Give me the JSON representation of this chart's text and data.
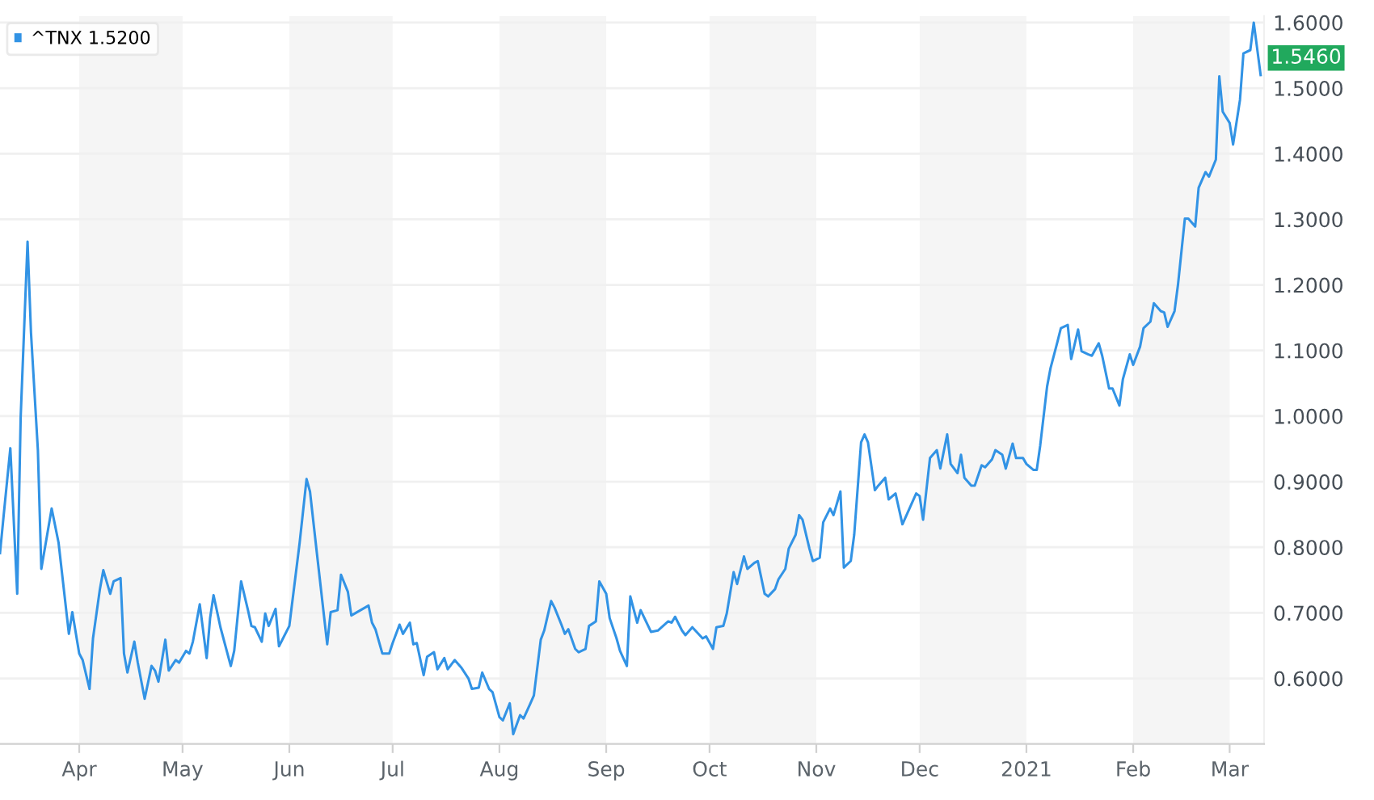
{
  "chart_data": {
    "type": "line",
    "x": [
      "2020-03-09",
      "2020-03-10",
      "2020-03-12",
      "2020-03-14",
      "2020-03-15",
      "2020-03-17",
      "2020-03-18",
      "2020-03-20",
      "2020-03-21",
      "2020-03-24",
      "2020-03-26",
      "2020-03-29",
      "2020-03-30",
      "2020-04-01",
      "2020-04-02",
      "2020-04-04",
      "2020-04-05",
      "2020-04-07",
      "2020-04-08",
      "2020-04-10",
      "2020-04-11",
      "2020-04-13",
      "2020-04-14",
      "2020-04-15",
      "2020-04-17",
      "2020-04-18",
      "2020-04-20",
      "2020-04-22",
      "2020-04-23",
      "2020-04-24",
      "2020-04-26",
      "2020-04-27",
      "2020-04-29",
      "2020-04-30",
      "2020-05-02",
      "2020-05-03",
      "2020-05-04",
      "2020-05-06",
      "2020-05-08",
      "2020-05-09",
      "2020-05-10",
      "2020-05-12",
      "2020-05-15",
      "2020-05-16",
      "2020-05-18",
      "2020-05-20",
      "2020-05-21",
      "2020-05-22",
      "2020-05-24",
      "2020-05-25",
      "2020-05-26",
      "2020-05-28",
      "2020-05-29",
      "2020-06-01",
      "2020-06-04",
      "2020-06-06",
      "2020-06-07",
      "2020-06-09",
      "2020-06-12",
      "2020-06-13",
      "2020-06-15",
      "2020-06-16",
      "2020-06-18",
      "2020-06-19",
      "2020-06-24",
      "2020-06-25",
      "2020-06-26",
      "2020-06-28",
      "2020-06-30",
      "2020-07-01",
      "2020-07-03",
      "2020-07-04",
      "2020-07-06",
      "2020-07-07",
      "2020-07-08",
      "2020-07-10",
      "2020-07-11",
      "2020-07-13",
      "2020-07-14",
      "2020-07-16",
      "2020-07-17",
      "2020-07-19",
      "2020-07-21",
      "2020-07-23",
      "2020-07-24",
      "2020-07-26",
      "2020-07-27",
      "2020-07-29",
      "2020-07-30",
      "2020-08-01",
      "2020-08-02",
      "2020-08-04",
      "2020-08-05",
      "2020-08-07",
      "2020-08-08",
      "2020-08-10",
      "2020-08-11",
      "2020-08-13",
      "2020-08-14",
      "2020-08-16",
      "2020-08-17",
      "2020-08-19",
      "2020-08-20",
      "2020-08-21",
      "2020-08-23",
      "2020-08-24",
      "2020-08-26",
      "2020-08-27",
      "2020-08-29",
      "2020-08-30",
      "2020-09-01",
      "2020-09-02",
      "2020-09-04",
      "2020-09-05",
      "2020-09-07",
      "2020-09-08",
      "2020-09-10",
      "2020-09-11",
      "2020-09-14",
      "2020-09-16",
      "2020-09-19",
      "2020-09-20",
      "2020-09-21",
      "2020-09-23",
      "2020-09-24",
      "2020-09-26",
      "2020-09-29",
      "2020-09-30",
      "2020-10-02",
      "2020-10-03",
      "2020-10-05",
      "2020-10-06",
      "2020-10-08",
      "2020-10-09",
      "2020-10-11",
      "2020-10-12",
      "2020-10-14",
      "2020-10-15",
      "2020-10-17",
      "2020-10-18",
      "2020-10-20",
      "2020-10-21",
      "2020-10-23",
      "2020-10-24",
      "2020-10-26",
      "2020-10-27",
      "2020-10-28",
      "2020-10-30",
      "2020-10-31",
      "2020-11-02",
      "2020-11-03",
      "2020-11-05",
      "2020-11-06",
      "2020-11-08",
      "2020-11-09",
      "2020-11-11",
      "2020-11-12",
      "2020-11-14",
      "2020-11-15",
      "2020-11-16",
      "2020-11-18",
      "2020-11-19",
      "2020-11-21",
      "2020-11-22",
      "2020-11-24",
      "2020-11-26",
      "2020-11-30",
      "2020-12-01",
      "2020-12-02",
      "2020-12-04",
      "2020-12-06",
      "2020-12-07",
      "2020-12-09",
      "2020-12-10",
      "2020-12-12",
      "2020-12-13",
      "2020-12-14",
      "2020-12-16",
      "2020-12-17",
      "2020-12-19",
      "2020-12-20",
      "2020-12-22",
      "2020-12-23",
      "2020-12-25",
      "2020-12-26",
      "2020-12-28",
      "2020-12-29",
      "2020-12-31",
      "2021-01-01",
      "2021-01-03",
      "2021-01-04",
      "2021-01-05",
      "2021-01-07",
      "2021-01-08",
      "2021-01-10",
      "2021-01-11",
      "2021-01-13",
      "2021-01-14",
      "2021-01-16",
      "2021-01-17",
      "2021-01-19",
      "2021-01-20",
      "2021-01-22",
      "2021-01-23",
      "2021-01-25",
      "2021-01-26",
      "2021-01-28",
      "2021-01-29",
      "2021-01-31",
      "2021-02-01",
      "2021-02-03",
      "2021-02-04",
      "2021-02-06",
      "2021-02-07",
      "2021-02-09",
      "2021-02-10",
      "2021-02-11",
      "2021-02-13",
      "2021-02-14",
      "2021-02-16",
      "2021-02-17",
      "2021-02-19",
      "2021-02-20",
      "2021-02-22",
      "2021-02-23",
      "2021-02-25",
      "2021-02-26",
      "2021-02-27",
      "2021-03-01",
      "2021-03-02",
      "2021-03-04",
      "2021-03-05",
      "2021-03-07",
      "2021-03-08",
      "2021-03-10"
    ],
    "series": [
      {
        "name": "^TNX 1.5200",
        "color": "#3293e5",
        "values": [
          0.791,
          0.845,
          0.951,
          0.729,
          0.998,
          1.266,
          1.127,
          0.948,
          0.767,
          0.859,
          0.807,
          0.668,
          0.701,
          0.638,
          0.628,
          0.584,
          0.661,
          0.736,
          0.765,
          0.729,
          0.748,
          0.753,
          0.638,
          0.609,
          0.656,
          0.624,
          0.569,
          0.619,
          0.612,
          0.595,
          0.659,
          0.612,
          0.628,
          0.624,
          0.642,
          0.638,
          0.656,
          0.713,
          0.631,
          0.692,
          0.727,
          0.678,
          0.619,
          0.642,
          0.748,
          0.704,
          0.68,
          0.678,
          0.656,
          0.699,
          0.68,
          0.706,
          0.649,
          0.68,
          0.807,
          0.904,
          0.885,
          0.791,
          0.652,
          0.701,
          0.704,
          0.758,
          0.732,
          0.696,
          0.711,
          0.685,
          0.675,
          0.638,
          0.638,
          0.654,
          0.682,
          0.668,
          0.685,
          0.652,
          0.654,
          0.605,
          0.633,
          0.64,
          0.614,
          0.631,
          0.614,
          0.628,
          0.616,
          0.6,
          0.584,
          0.586,
          0.609,
          0.584,
          0.579,
          0.541,
          0.536,
          0.562,
          0.515,
          0.544,
          0.539,
          0.562,
          0.574,
          0.659,
          0.673,
          0.718,
          0.708,
          0.682,
          0.668,
          0.675,
          0.645,
          0.64,
          0.645,
          0.68,
          0.687,
          0.748,
          0.729,
          0.692,
          0.661,
          0.642,
          0.619,
          0.725,
          0.685,
          0.704,
          0.671,
          0.673,
          0.687,
          0.685,
          0.694,
          0.673,
          0.666,
          0.678,
          0.661,
          0.664,
          0.645,
          0.678,
          0.68,
          0.699,
          0.762,
          0.744,
          0.786,
          0.767,
          0.776,
          0.779,
          0.729,
          0.725,
          0.736,
          0.751,
          0.767,
          0.798,
          0.819,
          0.849,
          0.842,
          0.798,
          0.779,
          0.784,
          0.838,
          0.859,
          0.849,
          0.885,
          0.769,
          0.779,
          0.819,
          0.96,
          0.972,
          0.96,
          0.887,
          0.894,
          0.906,
          0.873,
          0.882,
          0.835,
          0.882,
          0.878,
          0.842,
          0.936,
          0.948,
          0.92,
          0.972,
          0.927,
          0.913,
          0.941,
          0.906,
          0.894,
          0.894,
          0.925,
          0.922,
          0.934,
          0.948,
          0.941,
          0.92,
          0.958,
          0.936,
          0.936,
          0.927,
          0.918,
          0.918,
          0.955,
          1.045,
          1.073,
          1.113,
          1.134,
          1.139,
          1.087,
          1.132,
          1.099,
          1.094,
          1.092,
          1.111,
          1.092,
          1.042,
          1.042,
          1.016,
          1.056,
          1.094,
          1.078,
          1.106,
          1.134,
          1.144,
          1.172,
          1.16,
          1.158,
          1.136,
          1.16,
          1.2,
          1.301,
          1.301,
          1.289,
          1.348,
          1.372,
          1.365,
          1.391,
          1.518,
          1.464,
          1.447,
          1.414,
          1.482,
          1.553,
          1.558,
          1.6,
          1.52
        ]
      }
    ],
    "xlim": [
      "2020-03-09",
      "2021-03-11"
    ],
    "xticks": [
      {
        "value": "2020-04-01",
        "label": "Apr"
      },
      {
        "value": "2020-05-01",
        "label": "May"
      },
      {
        "value": "2020-06-01",
        "label": "Jun"
      },
      {
        "value": "2020-07-01",
        "label": "Jul"
      },
      {
        "value": "2020-08-01",
        "label": "Aug"
      },
      {
        "value": "2020-09-01",
        "label": "Sep"
      },
      {
        "value": "2020-10-01",
        "label": "Oct"
      },
      {
        "value": "2020-11-01",
        "label": "Nov"
      },
      {
        "value": "2020-12-01",
        "label": "Dec"
      },
      {
        "value": "2021-01-01",
        "label": "2021"
      },
      {
        "value": "2021-02-01",
        "label": "Feb"
      },
      {
        "value": "2021-03-01",
        "label": "Mar"
      }
    ],
    "ylim": [
      0.5,
      1.61
    ],
    "yticks": [
      {
        "value": 0.6,
        "label": "0.6000"
      },
      {
        "value": 0.7,
        "label": "0.7000"
      },
      {
        "value": 0.8,
        "label": "0.8000"
      },
      {
        "value": 0.9,
        "label": "0.9000"
      },
      {
        "value": 1.0,
        "label": "1.0000"
      },
      {
        "value": 1.1,
        "label": "1.1000"
      },
      {
        "value": 1.2,
        "label": "1.2000"
      },
      {
        "value": 1.3,
        "label": "1.3000"
      },
      {
        "value": 1.4,
        "label": "1.4000"
      },
      {
        "value": 1.5,
        "label": "1.5000"
      },
      {
        "value": 1.6,
        "label": "1.6000"
      }
    ],
    "bands": [
      {
        "axis": "x",
        "from": "2020-04-01",
        "to": "2020-05-01",
        "color": "#f5f5f5"
      },
      {
        "axis": "x",
        "from": "2020-06-01",
        "to": "2020-07-01",
        "color": "#f5f5f5"
      },
      {
        "axis": "x",
        "from": "2020-08-01",
        "to": "2020-09-01",
        "color": "#f5f5f5"
      },
      {
        "axis": "x",
        "from": "2020-10-01",
        "to": "2020-11-01",
        "color": "#f5f5f5"
      },
      {
        "axis": "x",
        "from": "2020-12-01",
        "to": "2021-01-01",
        "color": "#f5f5f5"
      },
      {
        "axis": "x",
        "from": "2021-02-01",
        "to": "2021-03-01",
        "color": "#f5f5f5"
      }
    ],
    "annotations": [
      {
        "text": "1.5460",
        "x": "2021-03-11",
        "y": 1.546
      }
    ],
    "grid": "y",
    "legend": "top left",
    "line_style": "solid",
    "marker": "none"
  }
}
